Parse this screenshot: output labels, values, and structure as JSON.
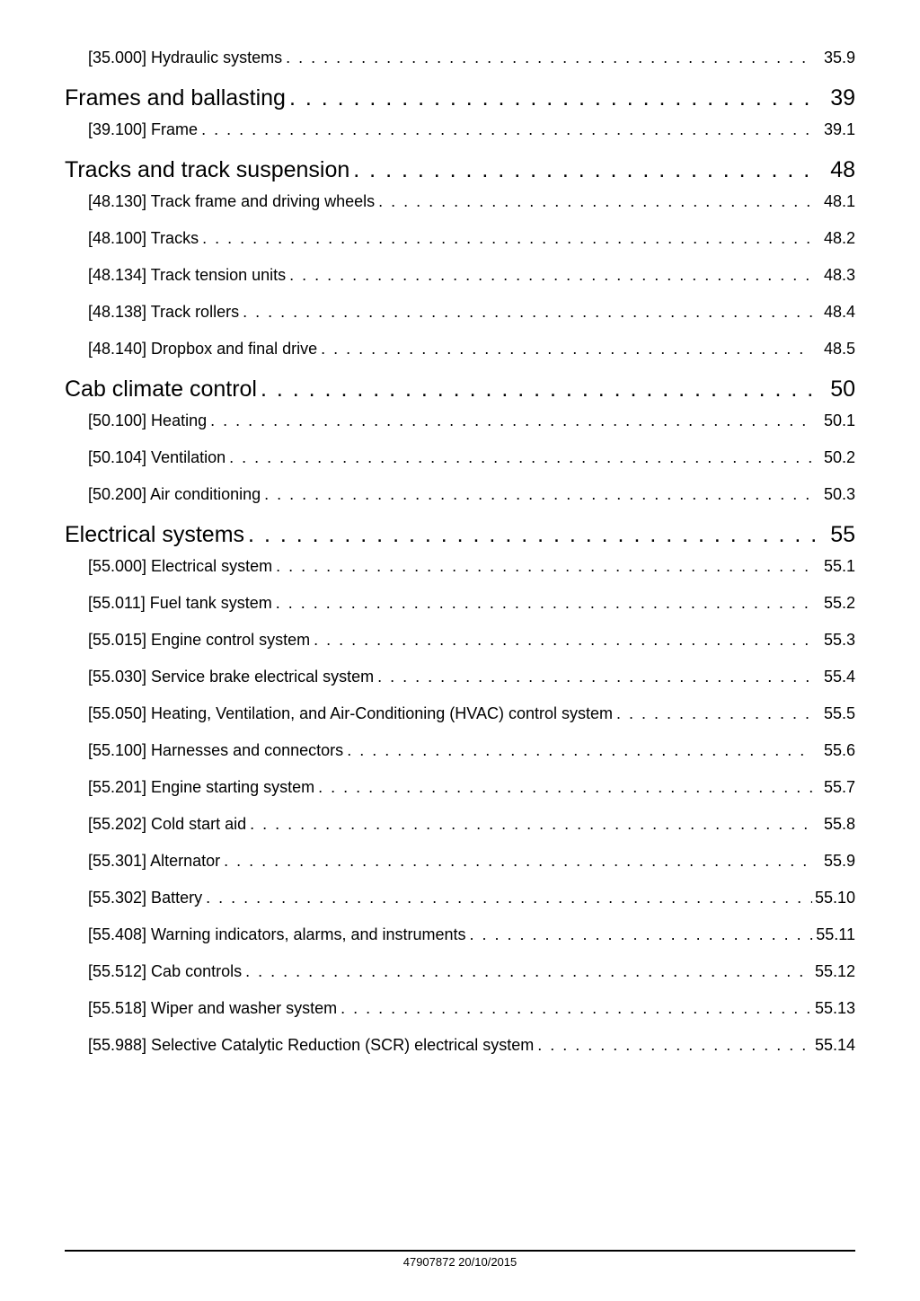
{
  "dots": ". . . . . . . . . . . . . . . . . . . . . . . . . . . . . . . . . . . . . . . . . . . . . . . . . . . . . . . . . . . . . . . . . . . . . . . . . . . . . . . . . . . . . . . . . . . . . . . . . . . . . . . . . . . . . . . . . . . . . . . .",
  "entries": [
    {
      "level": "sub",
      "label": "[35.000] Hydraulic systems",
      "page": "35.9"
    },
    {
      "level": "section",
      "label": "Frames and ballasting",
      "page": "39"
    },
    {
      "level": "sub",
      "label": "[39.100] Frame",
      "page": "39.1"
    },
    {
      "level": "section",
      "label": "Tracks and track suspension",
      "page": "48"
    },
    {
      "level": "sub",
      "label": "[48.130] Track frame and driving wheels",
      "page": "48.1"
    },
    {
      "level": "sub",
      "label": "[48.100] Tracks",
      "page": "48.2"
    },
    {
      "level": "sub",
      "label": "[48.134] Track tension units",
      "page": "48.3"
    },
    {
      "level": "sub",
      "label": "[48.138] Track rollers",
      "page": "48.4"
    },
    {
      "level": "sub",
      "label": "[48.140] Dropbox and final drive",
      "page": "48.5"
    },
    {
      "level": "section",
      "label": "Cab climate control",
      "page": "50"
    },
    {
      "level": "sub",
      "label": "[50.100] Heating",
      "page": "50.1"
    },
    {
      "level": "sub",
      "label": "[50.104] Ventilation",
      "page": "50.2"
    },
    {
      "level": "sub",
      "label": "[50.200] Air conditioning",
      "page": "50.3"
    },
    {
      "level": "section",
      "label": "Electrical systems",
      "page": "55"
    },
    {
      "level": "sub",
      "label": "[55.000] Electrical system",
      "page": "55.1"
    },
    {
      "level": "sub",
      "label": "[55.011] Fuel tank system",
      "page": "55.2"
    },
    {
      "level": "sub",
      "label": "[55.015] Engine control system",
      "page": "55.3"
    },
    {
      "level": "sub",
      "label": "[55.030] Service brake electrical system",
      "page": "55.4"
    },
    {
      "level": "sub",
      "label": "[55.050] Heating, Ventilation, and Air-Conditioning (HVAC) control system",
      "page": "55.5"
    },
    {
      "level": "sub",
      "label": "[55.100] Harnesses and connectors",
      "page": "55.6"
    },
    {
      "level": "sub",
      "label": "[55.201] Engine starting system",
      "page": "55.7"
    },
    {
      "level": "sub",
      "label": "[55.202] Cold start aid",
      "page": "55.8"
    },
    {
      "level": "sub",
      "label": "[55.301] Alternator",
      "page": "55.9"
    },
    {
      "level": "sub",
      "label": "[55.302] Battery",
      "page": "55.10"
    },
    {
      "level": "sub",
      "label": "[55.408] Warning indicators, alarms, and instruments",
      "page": "55.11"
    },
    {
      "level": "sub",
      "label": "[55.512] Cab controls",
      "page": "55.12"
    },
    {
      "level": "sub",
      "label": "[55.518] Wiper and washer system",
      "page": "55.13"
    },
    {
      "level": "sub",
      "label": "[55.988] Selective Catalytic Reduction (SCR) electrical system",
      "page": "55.14"
    }
  ],
  "footer": "47907872 20/10/2015"
}
